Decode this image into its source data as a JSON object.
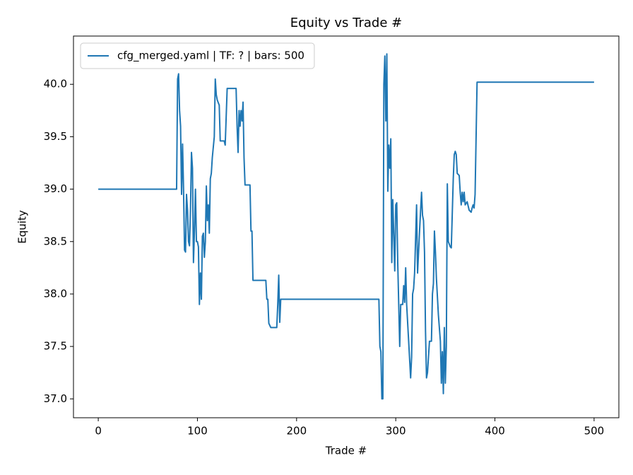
{
  "chart_data": {
    "type": "line",
    "title": "Equity vs Trade #",
    "x_label": "Trade #",
    "y_label": "Equity",
    "legend": "upper left",
    "xlim": [
      -25,
      525
    ],
    "ylim": [
      36.82,
      40.46
    ],
    "xticks": [
      0,
      100,
      200,
      300,
      400,
      500
    ],
    "yticks": [
      {
        "value": 37.0,
        "label": "37.0"
      },
      37.5,
      {
        "value": 38.0,
        "label": "38.0"
      },
      38.5,
      {
        "value": 39.0,
        "label": "39.0"
      },
      39.5,
      {
        "value": 40.0,
        "label": "40.0"
      }
    ],
    "series": [
      {
        "name": "cfg_merged.yaml | TF: ? | bars: 500",
        "color": "#1f77b4",
        "x": [
          0,
          79,
          80,
          81,
          82,
          83,
          84,
          85,
          86,
          87,
          88,
          89,
          90,
          91,
          92,
          93,
          94,
          95,
          96,
          97,
          98,
          99,
          100,
          101,
          102,
          103,
          104,
          105,
          106,
          107,
          108,
          109,
          110,
          111,
          112,
          113,
          114,
          115,
          117,
          118,
          119,
          120,
          122,
          123,
          127,
          128,
          130,
          139,
          140,
          141,
          142,
          143,
          144,
          145,
          146,
          147,
          148,
          153,
          154,
          155,
          156,
          169,
          170,
          171,
          172,
          174,
          180,
          181,
          182,
          183,
          184,
          283,
          284,
          285,
          286,
          287,
          288,
          289,
          290,
          291,
          292,
          293,
          294,
          295,
          296,
          297,
          299,
          300,
          301,
          302,
          304,
          305,
          307,
          308,
          309,
          310,
          311,
          313,
          315,
          316,
          317,
          318,
          319,
          321,
          322,
          324,
          326,
          327,
          328,
          329,
          330,
          331,
          332,
          334,
          336,
          337,
          338,
          339,
          340,
          341,
          343,
          345,
          346,
          347,
          348,
          349,
          350,
          351,
          352,
          353,
          355,
          356,
          358,
          359,
          360,
          361,
          362,
          364,
          365,
          366,
          367,
          368,
          369,
          370,
          372,
          374,
          376,
          377,
          378,
          379,
          380,
          382,
          500
        ],
        "values": [
          39.0,
          39.0,
          40.05,
          40.1,
          39.75,
          39.6,
          38.95,
          39.43,
          39.0,
          38.42,
          38.4,
          38.95,
          38.8,
          38.5,
          38.46,
          38.8,
          39.35,
          39.2,
          38.3,
          38.6,
          39.0,
          38.5,
          38.5,
          38.45,
          37.9,
          38.2,
          37.95,
          38.55,
          38.58,
          38.35,
          38.5,
          39.03,
          38.7,
          38.85,
          38.58,
          39.1,
          39.15,
          39.3,
          39.5,
          40.05,
          39.9,
          39.85,
          39.8,
          39.46,
          39.46,
          39.42,
          39.96,
          39.96,
          39.6,
          39.35,
          39.75,
          39.6,
          39.75,
          39.65,
          39.83,
          39.3,
          39.04,
          39.04,
          38.6,
          38.6,
          38.13,
          38.13,
          37.95,
          37.95,
          37.72,
          37.68,
          37.68,
          37.9,
          38.18,
          37.73,
          37.95,
          37.95,
          37.5,
          37.45,
          37.0,
          37.0,
          40.0,
          40.27,
          39.65,
          40.29,
          38.98,
          39.42,
          39.2,
          39.48,
          38.3,
          38.9,
          38.22,
          38.85,
          38.87,
          38.3,
          37.5,
          37.9,
          37.9,
          38.08,
          37.92,
          38.25,
          37.9,
          37.55,
          37.2,
          37.4,
          38.0,
          38.05,
          38.2,
          38.85,
          38.2,
          38.6,
          38.97,
          38.75,
          38.7,
          38.4,
          37.65,
          37.2,
          37.25,
          37.55,
          37.55,
          38.0,
          38.1,
          38.6,
          38.4,
          38.15,
          37.8,
          37.55,
          37.15,
          37.45,
          37.05,
          37.68,
          37.15,
          37.5,
          39.05,
          38.5,
          38.45,
          38.44,
          39.1,
          39.33,
          39.36,
          39.33,
          39.15,
          39.13,
          38.97,
          38.85,
          38.97,
          38.88,
          38.97,
          38.85,
          38.88,
          38.8,
          38.78,
          38.82,
          38.85,
          38.82,
          38.95,
          40.02,
          40.02
        ]
      }
    ]
  }
}
